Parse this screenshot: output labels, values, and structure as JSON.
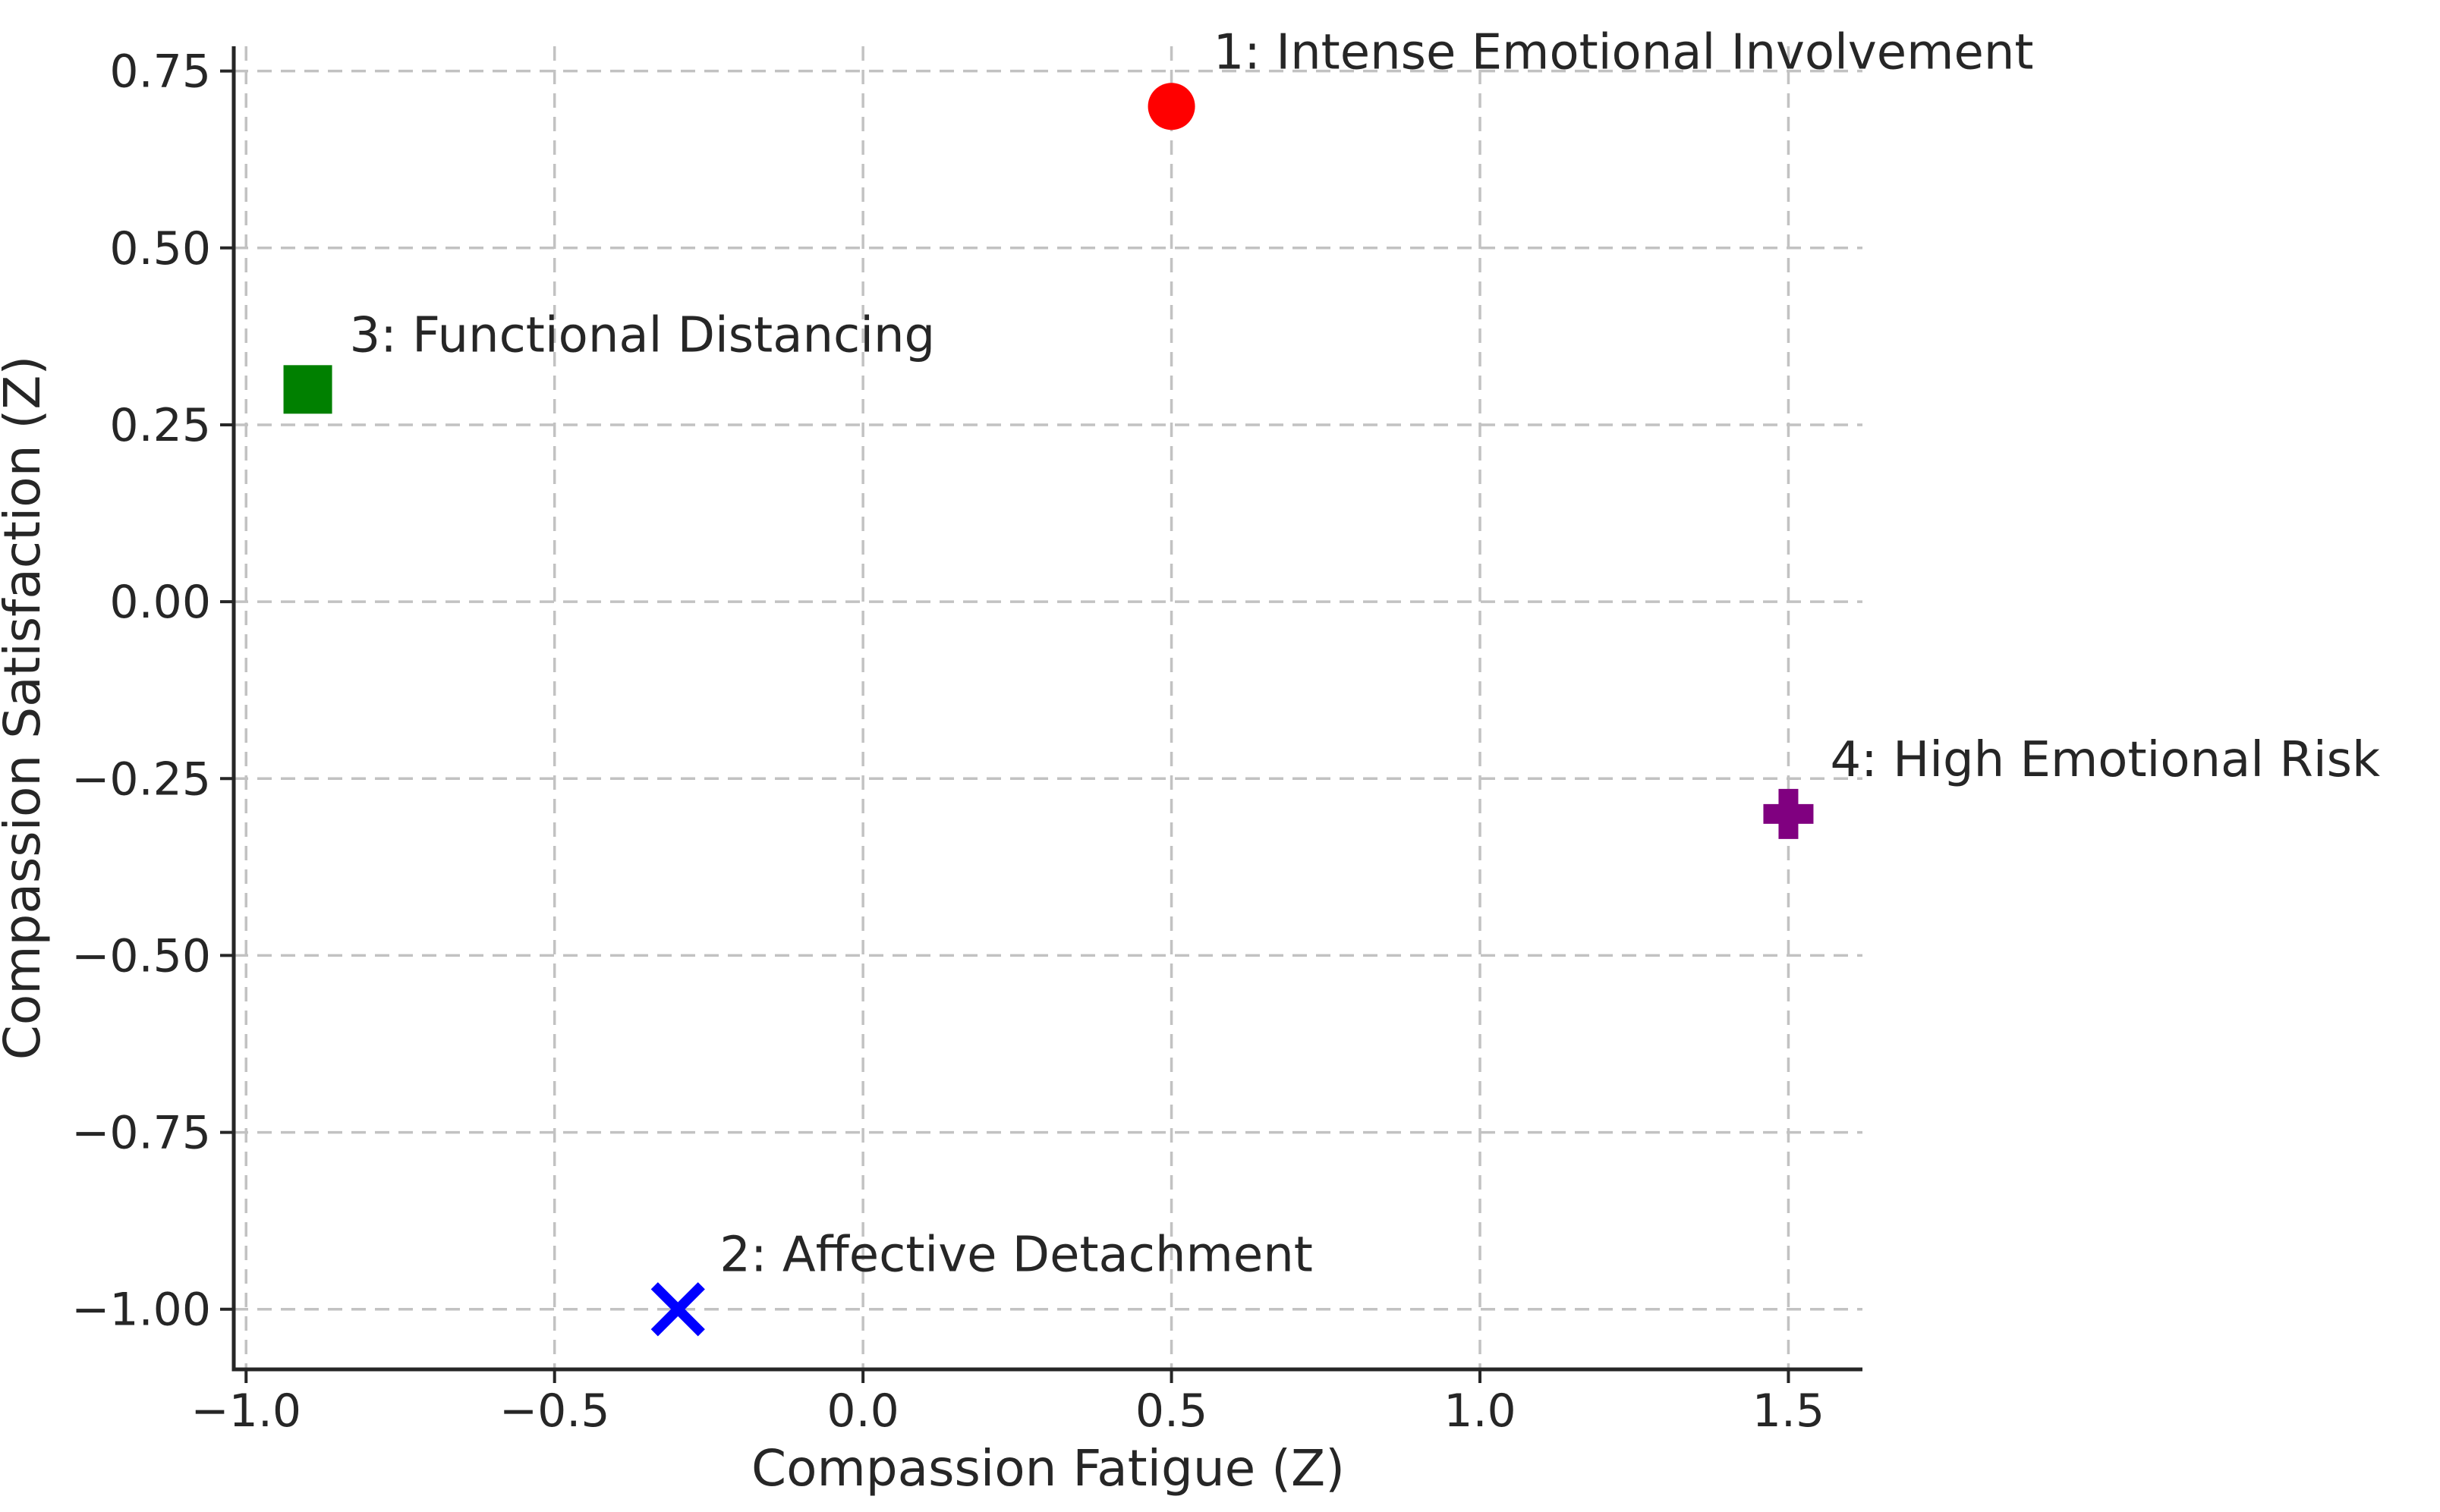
{
  "style": {
    "background": "#ffffff",
    "text_color": "#262626",
    "grid_color": "#c2c2c2",
    "spine_color": "#262626"
  },
  "chart_data": {
    "type": "scatter",
    "title": "",
    "xlabel": "Compassion Fatigue (Z)",
    "ylabel": "Compassion Satisfaction (Z)",
    "xlim": [
      -1.02,
      1.62
    ],
    "ylim": [
      -1.085,
      0.785
    ],
    "grid": true,
    "legend_position": "none",
    "x_ticks": [
      {
        "value": -1.0,
        "label": "−1.0"
      },
      {
        "value": -0.5,
        "label": "−0.5"
      },
      {
        "value": 0.0,
        "label": "0.0"
      },
      {
        "value": 0.5,
        "label": "0.5"
      },
      {
        "value": 1.0,
        "label": "1.0"
      },
      {
        "value": 1.5,
        "label": "1.5"
      }
    ],
    "y_ticks": [
      {
        "value": 0.75,
        "label": "0.75"
      },
      {
        "value": 0.5,
        "label": "0.50"
      },
      {
        "value": 0.25,
        "label": "0.25"
      },
      {
        "value": 0.0,
        "label": "0.00"
      },
      {
        "value": -0.25,
        "label": "−0.25"
      },
      {
        "value": -0.5,
        "label": "−0.50"
      },
      {
        "value": -0.75,
        "label": "−0.75"
      },
      {
        "value": -1.0,
        "label": "−1.00"
      }
    ],
    "points": [
      {
        "cluster": 1,
        "x": 0.5,
        "y": 0.7,
        "label": "1: Intense Emotional Involvement",
        "marker": "circle",
        "color": "#ff0000"
      },
      {
        "cluster": 2,
        "x": -0.3,
        "y": -1.0,
        "label": "2: Affective Detachment",
        "marker": "x",
        "color": "#0000ff"
      },
      {
        "cluster": 3,
        "x": -0.9,
        "y": 0.3,
        "label": "3: Functional Distancing",
        "marker": "square",
        "color": "#008000"
      },
      {
        "cluster": 4,
        "x": 1.5,
        "y": -0.3,
        "label": "4: High Emotional Risk",
        "marker": "plus",
        "color": "#800080"
      }
    ]
  }
}
